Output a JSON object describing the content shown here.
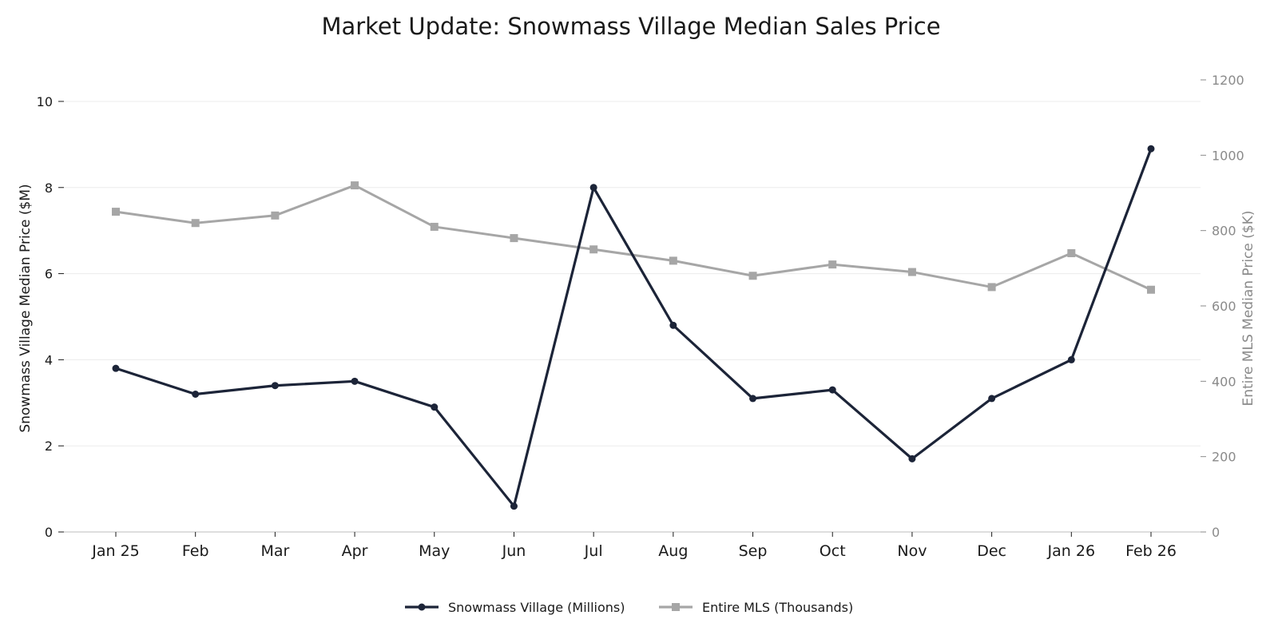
{
  "chart_data": {
    "type": "line",
    "title": "Market Update: Snowmass Village Median Sales Price",
    "categories": [
      "Jan 25",
      "Feb",
      "Mar",
      "Apr",
      "May",
      "Jun",
      "Jul",
      "Aug",
      "Sep",
      "Oct",
      "Nov",
      "Dec",
      "Jan 26",
      "Feb 26"
    ],
    "ylabel": "Snowmass Village Median Price ($M)",
    "ylim": [
      0,
      10.5
    ],
    "yticks": [
      0,
      2,
      4,
      6,
      8,
      10
    ],
    "y2label": "Entire MLS Median Price ($K)",
    "y2lim": [
      0,
      1200
    ],
    "y2ticks": [
      0,
      200,
      400,
      600,
      800,
      1000,
      1200
    ],
    "grid": "horizontal",
    "legend_position": "bottom-center",
    "series": [
      {
        "name": "Snowmass Village (Millions)",
        "axis": "left",
        "color": "#1c2438",
        "marker": "circle",
        "values": [
          3.8,
          3.2,
          3.4,
          3.5,
          2.9,
          0.6,
          8.0,
          4.8,
          3.1,
          3.3,
          1.7,
          3.1,
          4.0,
          8.9
        ]
      },
      {
        "name": "Entire MLS (Thousands)",
        "axis": "right",
        "color": "#a6a6a6",
        "marker": "square",
        "values": [
          850,
          820,
          840,
          920,
          810,
          780,
          750,
          720,
          680,
          710,
          690,
          650,
          740,
          643
        ]
      }
    ]
  }
}
